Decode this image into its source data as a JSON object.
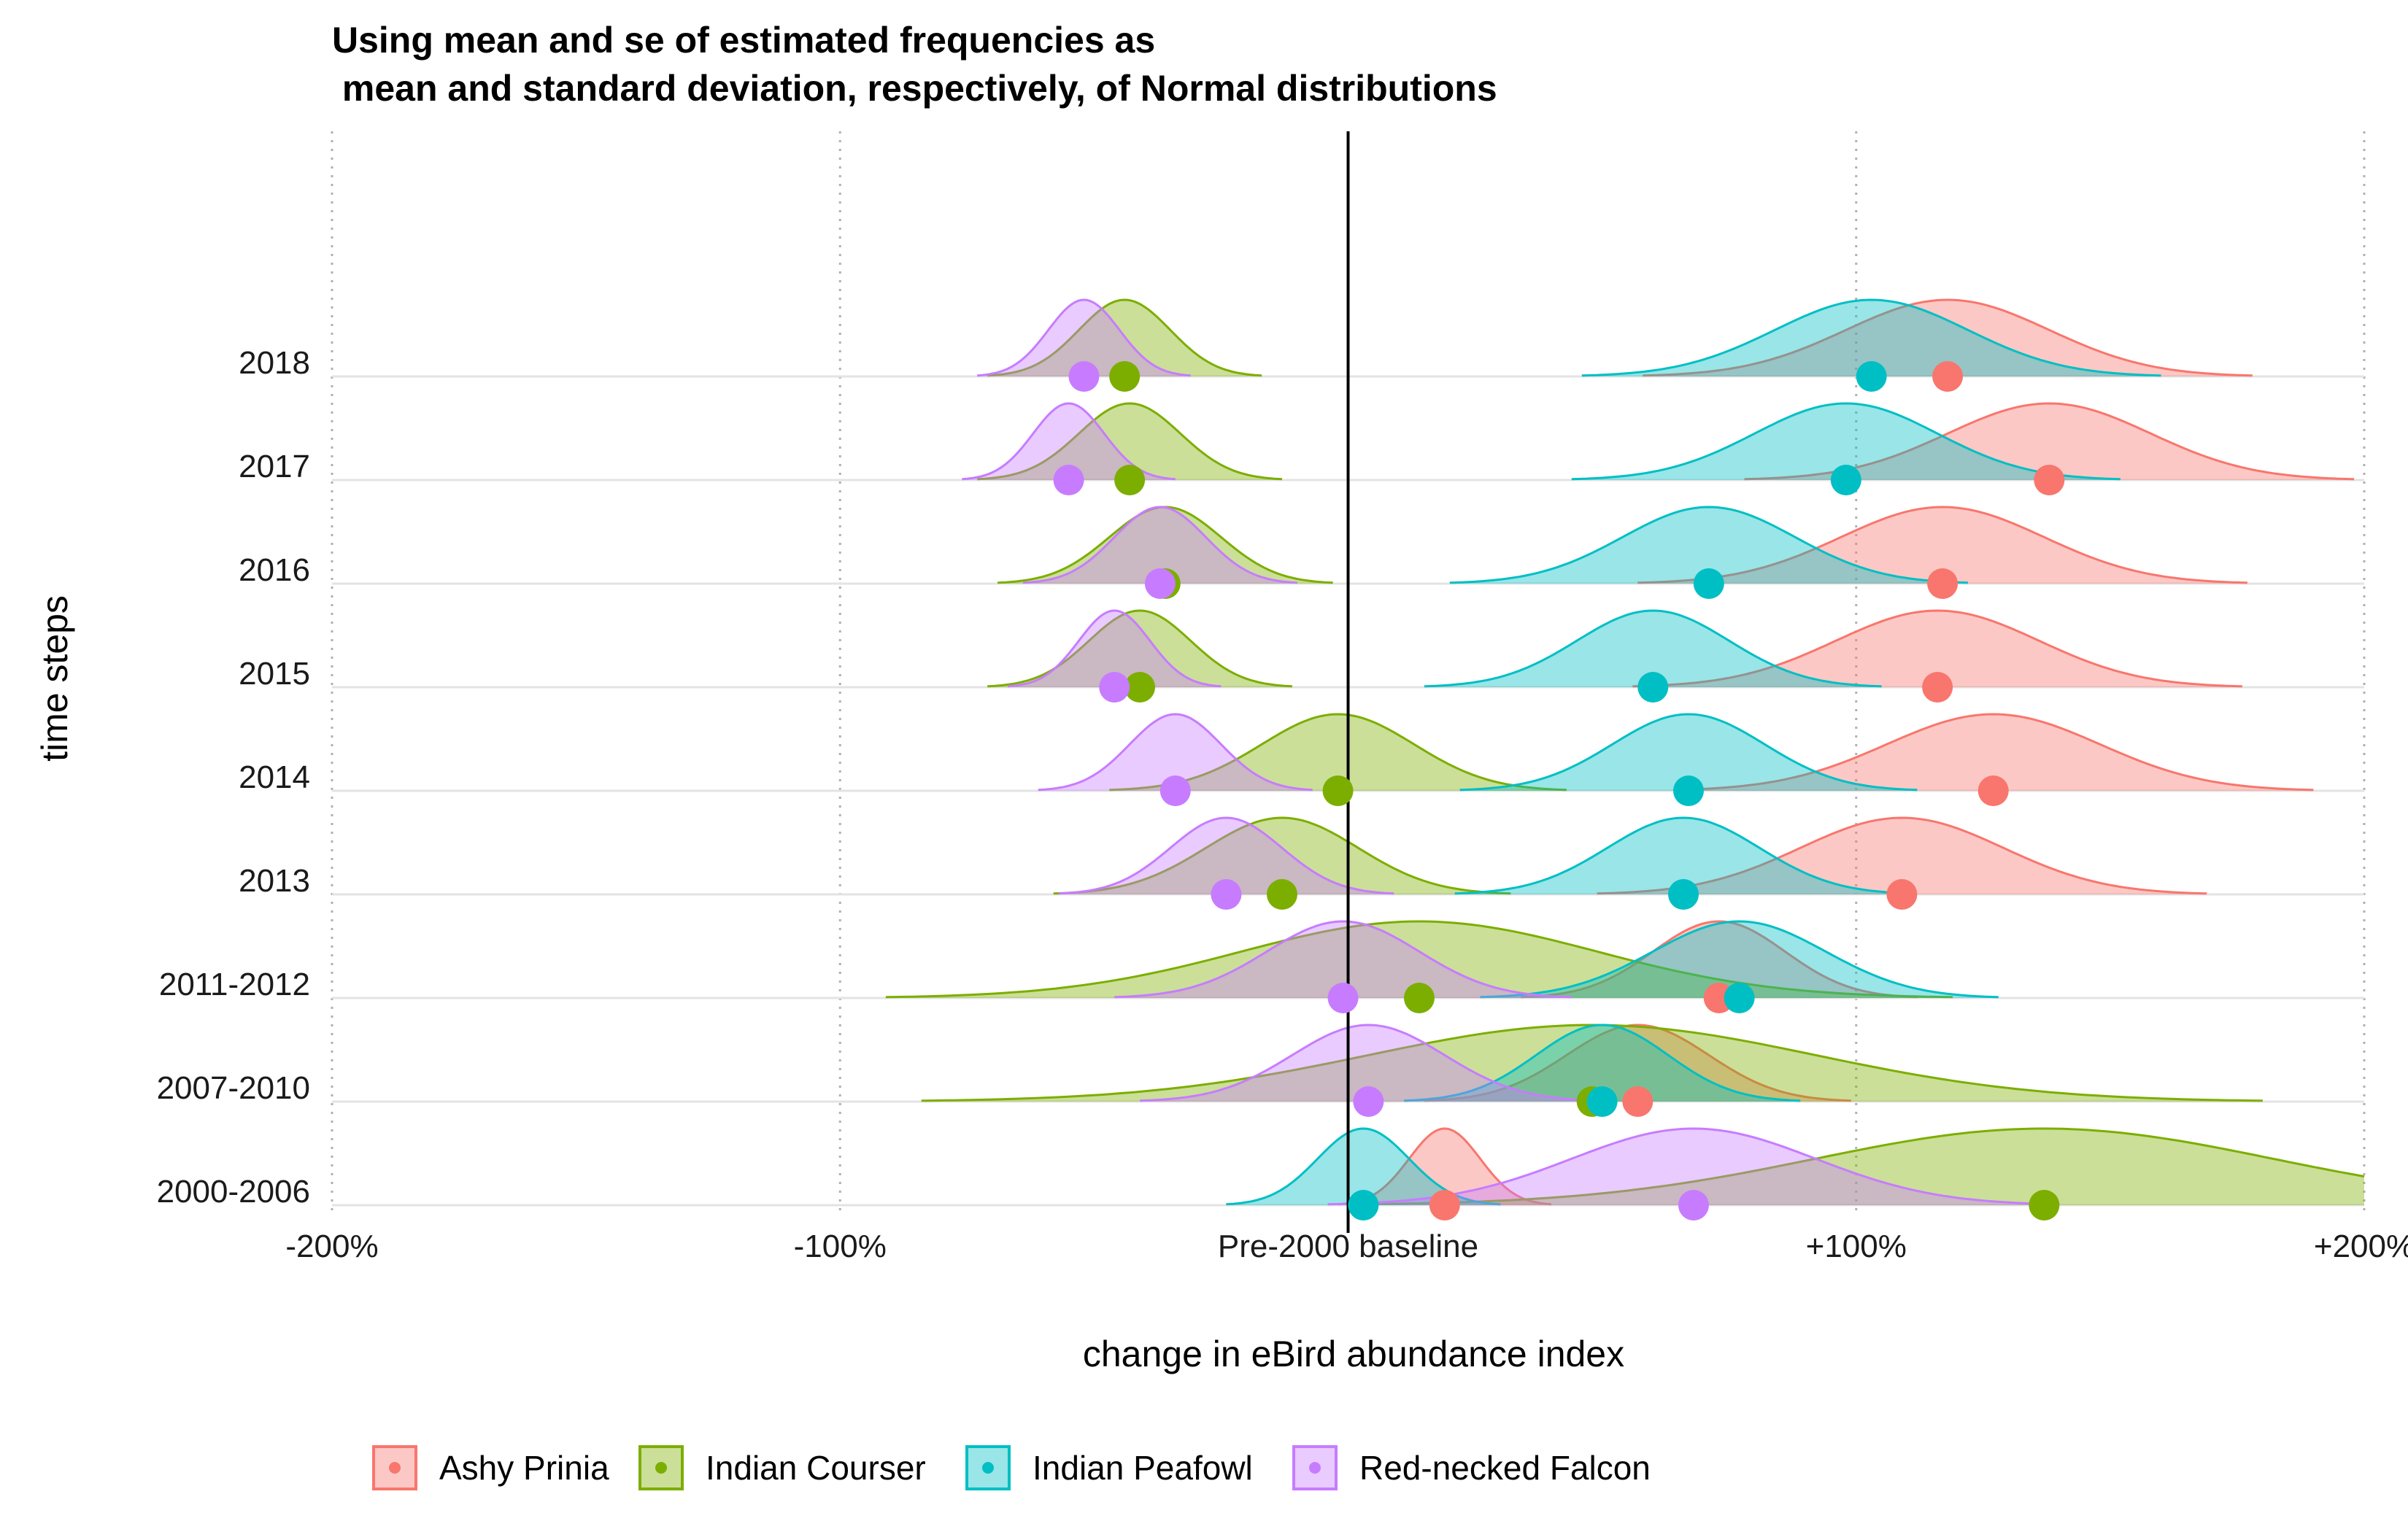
{
  "chart_data": {
    "type": "ridgeline",
    "title": "Using mean and se of estimated frequencies as\n mean and standard deviation, respectively, of Normal distributions",
    "xlabel": "change in eBird abundance index",
    "ylabel": "time steps",
    "xlim": [
      -2.0,
      2.0
    ],
    "x_ticks": [
      {
        "value": -2.0,
        "label": "-200%"
      },
      {
        "value": -1.0,
        "label": "-100%"
      },
      {
        "value": 0.0,
        "label": "Pre-2000 baseline"
      },
      {
        "value": 1.0,
        "label": "+100%"
      },
      {
        "value": 2.0,
        "label": "+200%"
      }
    ],
    "categories": [
      "2000-2006",
      "2007-2010",
      "2011-2012",
      "2013",
      "2014",
      "2015",
      "2016",
      "2017",
      "2018"
    ],
    "grid": "vertical dotted at major ticks, horizontal baselines per category",
    "reference_line": {
      "x": 0.0
    },
    "legend_position": "bottom",
    "series": [
      {
        "name": "Ashy Prinia",
        "color": "#F8766D",
        "means": [
          0.19,
          0.57,
          0.73,
          1.09,
          1.27,
          1.16,
          1.17,
          1.38,
          1.18
        ],
        "sds": [
          0.07,
          0.14,
          0.13,
          0.2,
          0.21,
          0.2,
          0.2,
          0.2,
          0.2
        ]
      },
      {
        "name": "Indian Courser",
        "color": "#7CAE00",
        "means": [
          1.37,
          0.48,
          0.14,
          -0.13,
          -0.02,
          -0.41,
          -0.36,
          -0.43,
          -0.44
        ],
        "sds": [
          0.45,
          0.44,
          0.35,
          0.15,
          0.15,
          0.1,
          0.11,
          0.1,
          0.09
        ]
      },
      {
        "name": "Indian Peafowl",
        "color": "#00BFC4",
        "means": [
          0.03,
          0.5,
          0.77,
          0.66,
          0.67,
          0.6,
          0.71,
          0.98,
          1.03
        ],
        "sds": [
          0.09,
          0.13,
          0.17,
          0.15,
          0.15,
          0.15,
          0.17,
          0.18,
          0.19
        ]
      },
      {
        "name": "Red-necked Falcon",
        "color": "#C77CFF",
        "means": [
          0.68,
          0.04,
          -0.01,
          -0.24,
          -0.34,
          -0.46,
          -0.37,
          -0.55,
          -0.52
        ],
        "sds": [
          0.24,
          0.15,
          0.15,
          0.11,
          0.09,
          0.07,
          0.09,
          0.07,
          0.07
        ]
      }
    ]
  }
}
